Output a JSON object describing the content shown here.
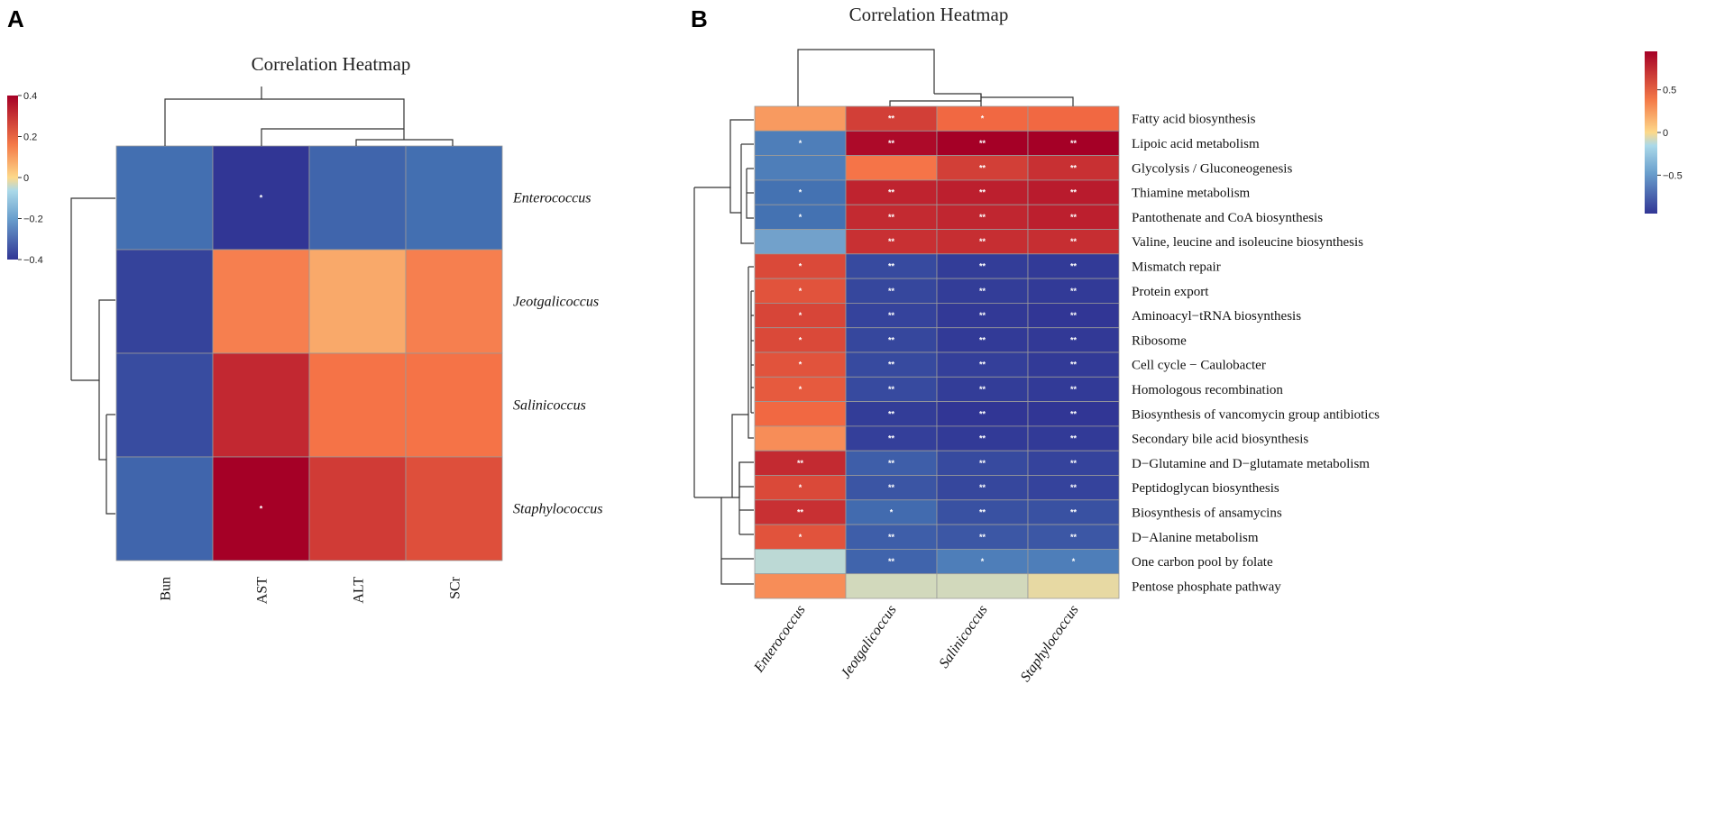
{
  "panels": {
    "a": {
      "letter": "A"
    },
    "b": {
      "letter": "B"
    }
  },
  "colors": {
    "low": "#313695",
    "lowmid": "#4575b4",
    "mid_low": "#abd9e9",
    "mid": "#fdd98a",
    "mid_high": "#f46d43",
    "high": "#a50026"
  },
  "chart_data": [
    {
      "type": "heatmap",
      "title": "Correlation Heatmap",
      "columns": [
        "Bun",
        "AST",
        "ALT",
        "SCr"
      ],
      "rows": [
        "Enterococcus",
        "Jeotgalicoccus",
        "Salinicoccus",
        "Staphylococcus"
      ],
      "values": [
        [
          -0.22,
          -0.4,
          -0.25,
          -0.22
        ],
        [
          -0.36,
          0.15,
          0.08,
          0.15
        ],
        [
          -0.33,
          0.32,
          0.17,
          0.17
        ],
        [
          -0.25,
          0.4,
          0.28,
          0.24
        ]
      ],
      "significance": [
        [
          "",
          "*",
          "",
          ""
        ],
        [
          "",
          "",
          "",
          ""
        ],
        [
          "",
          "",
          "",
          ""
        ],
        [
          "",
          "*",
          "",
          ""
        ]
      ],
      "colorbar": {
        "range": [
          -0.4,
          0.4
        ],
        "ticks": [
          "0.4",
          "0.2",
          "0",
          "−0.2",
          "−0.4"
        ],
        "tick_values": [
          0.4,
          0.2,
          0,
          -0.2,
          -0.4
        ]
      }
    },
    {
      "type": "heatmap",
      "title": "Correlation Heatmap",
      "columns": [
        "Enterococcus",
        "Jeotgalicoccus",
        "Salinicoccus",
        "Staphylococcus"
      ],
      "rows": [
        "Fatty acid biosynthesis",
        "Lipoic acid metabolism",
        "Glycolysis / Gluconeogenesis",
        "Thiamine metabolism",
        "Pantothenate and CoA biosynthesis",
        "Valine, leucine and isoleucine biosynthesis",
        "Mismatch repair",
        "Protein export",
        "Aminoacyl−tRNA biosynthesis",
        "Ribosome",
        "Cell cycle − Caulobacter",
        "Homologous recombination",
        "Biosynthesis of vancomycin group antibiotics",
        "Secondary bile acid biosynthesis",
        "D−Glutamine and D−glutamate metabolism",
        "Peptidoglycan biosynthesis",
        "Biosynthesis of ansamycins",
        "D−Alanine metabolism",
        "One carbon pool by folate",
        "Pentose phosphate pathway"
      ],
      "values": [
        [
          0.25,
          0.65,
          0.45,
          0.45
        ],
        [
          -0.45,
          0.9,
          0.95,
          0.95
        ],
        [
          -0.45,
          0.4,
          0.65,
          0.72
        ],
        [
          -0.5,
          0.78,
          0.8,
          0.82
        ],
        [
          -0.5,
          0.75,
          0.77,
          0.8
        ],
        [
          -0.35,
          0.72,
          0.73,
          0.73
        ],
        [
          0.6,
          -0.8,
          -0.9,
          -0.92
        ],
        [
          0.55,
          -0.82,
          -0.9,
          -0.92
        ],
        [
          0.62,
          -0.85,
          -0.93,
          -0.95
        ],
        [
          0.6,
          -0.82,
          -0.92,
          -0.93
        ],
        [
          0.55,
          -0.8,
          -0.88,
          -0.92
        ],
        [
          0.52,
          -0.8,
          -0.9,
          -0.92
        ],
        [
          0.45,
          -0.9,
          -0.95,
          -0.95
        ],
        [
          0.3,
          -0.88,
          -0.92,
          -0.92
        ],
        [
          0.75,
          -0.65,
          -0.8,
          -0.85
        ],
        [
          0.6,
          -0.72,
          -0.82,
          -0.85
        ],
        [
          0.72,
          -0.55,
          -0.75,
          -0.75
        ],
        [
          0.55,
          -0.65,
          -0.7,
          -0.7
        ],
        [
          -0.15,
          -0.6,
          -0.45,
          -0.45
        ],
        [
          0.3,
          -0.1,
          -0.1,
          -0.05
        ]
      ],
      "significance": [
        [
          "",
          "**",
          "*",
          ""
        ],
        [
          "*",
          "**",
          "**",
          "**"
        ],
        [
          "",
          "",
          "**",
          "**"
        ],
        [
          "*",
          "**",
          "**",
          "**"
        ],
        [
          "*",
          "**",
          "**",
          "**"
        ],
        [
          "",
          "**",
          "**",
          "**"
        ],
        [
          "*",
          "**",
          "**",
          "**"
        ],
        [
          "*",
          "**",
          "**",
          "**"
        ],
        [
          "*",
          "**",
          "**",
          "**"
        ],
        [
          "*",
          "**",
          "**",
          "**"
        ],
        [
          "*",
          "**",
          "**",
          "**"
        ],
        [
          "*",
          "**",
          "**",
          "**"
        ],
        [
          "",
          "**",
          "**",
          "**"
        ],
        [
          "",
          "**",
          "**",
          "**"
        ],
        [
          "**",
          "**",
          "**",
          "**"
        ],
        [
          "*",
          "**",
          "**",
          "**"
        ],
        [
          "**",
          "*",
          "**",
          "**"
        ],
        [
          "*",
          "**",
          "**",
          "**"
        ],
        [
          "",
          "**",
          "*",
          "*"
        ],
        [
          "",
          "",
          "",
          ""
        ]
      ],
      "colorbar": {
        "range": [
          -0.95,
          0.95
        ],
        "ticks": [
          "0.5",
          "0",
          "−0.5"
        ],
        "tick_values": [
          0.5,
          0,
          -0.5
        ]
      }
    }
  ]
}
